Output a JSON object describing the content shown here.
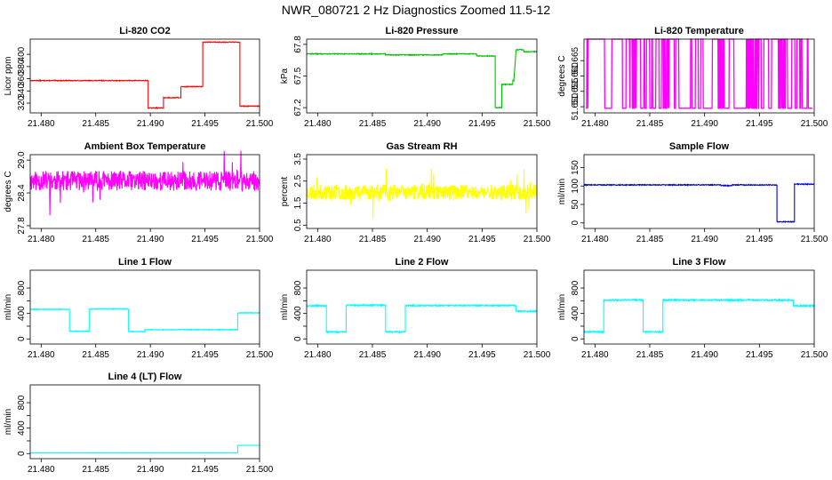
{
  "figure_title": "NWR_080721  2 Hz Diagnostics Zoomed 11.5-12",
  "chart_data": [
    {
      "type": "line",
      "title": "Li-820 CO2",
      "ylabel": "Licor ppm",
      "color": "#ff0000",
      "xlim": [
        21.479,
        21.5
      ],
      "xticks": [
        21.48,
        21.485,
        21.49,
        21.495,
        21.5
      ],
      "xtick_labels": [
        "21.480",
        "21.485",
        "21.490",
        "21.495",
        "21.500"
      ],
      "ylim": [
        304,
        425
      ],
      "yticks": [
        320,
        340,
        360,
        380,
        400
      ],
      "ytick_labels": [
        "320",
        "340",
        "360",
        "380",
        "400"
      ],
      "noise": 0.6,
      "segments": [
        [
          21.479,
          21.4898,
          357
        ],
        [
          21.4898,
          21.4912,
          312
        ],
        [
          21.4912,
          21.4928,
          329
        ],
        [
          21.4928,
          21.4948,
          347
        ],
        [
          21.4948,
          21.4982,
          420
        ],
        [
          21.4982,
          21.5,
          315
        ]
      ]
    },
    {
      "type": "line",
      "title": "Li-820 Pressure",
      "ylabel": "kPa",
      "color": "#00c000",
      "xlim": [
        21.479,
        21.5
      ],
      "xticks": [
        21.48,
        21.485,
        21.49,
        21.495,
        21.5
      ],
      "xtick_labels": [
        "21.480",
        "21.485",
        "21.490",
        "21.495",
        "21.500"
      ],
      "ylim": [
        67.15,
        67.85
      ],
      "yticks": [
        67.2,
        67.5,
        67.8
      ],
      "ytick_labels": [
        "67.2",
        "67.5",
        "67.8"
      ],
      "noise": 0.004,
      "segments": [
        [
          21.479,
          21.4862,
          67.71
        ],
        [
          21.4862,
          21.4914,
          67.7
        ],
        [
          21.4914,
          21.4945,
          67.71
        ],
        [
          21.4945,
          21.4962,
          67.69
        ],
        [
          21.4962,
          21.4968,
          67.2
        ],
        [
          21.4968,
          21.4978,
          67.42
        ],
        [
          21.4978,
          21.4979,
          67.46
        ],
        [
          21.4981,
          21.4988,
          67.75
        ],
        [
          21.4988,
          21.5,
          67.73
        ]
      ]
    },
    {
      "type": "line",
      "title": "Li-820 Temperature",
      "ylabel": "degrees C",
      "color": "#ff00ff",
      "xlim": [
        21.479,
        21.5
      ],
      "xticks": [
        21.48,
        21.485,
        21.49,
        21.495,
        21.5
      ],
      "xtick_labels": [
        "21.480",
        "21.485",
        "21.490",
        "21.495",
        "21.500"
      ],
      "ylim": [
        51.648,
        51.672
      ],
      "yticks": [
        51.65,
        51.655,
        51.66,
        51.665
      ],
      "ytick_labels": [
        "51.650",
        "51.655",
        "51.660",
        "51.665"
      ],
      "binary": [
        51.6495,
        51.672
      ],
      "binary_density": 0.07,
      "binary_dense_zones": [
        [
          21.4834,
          21.4838
        ],
        [
          21.4862,
          21.4868
        ],
        [
          21.4912,
          21.4918
        ],
        [
          21.4938,
          21.4948
        ],
        [
          21.4968,
          21.4974
        ]
      ],
      "seed": 7
    },
    {
      "type": "line",
      "title": "Ambient Box Temperature",
      "ylabel": "degrees C",
      "color": "#ff00ff",
      "xlim": [
        21.479,
        21.5
      ],
      "xticks": [
        21.48,
        21.485,
        21.49,
        21.495,
        21.5
      ],
      "xtick_labels": [
        "21.480",
        "21.485",
        "21.490",
        "21.495",
        "21.500"
      ],
      "ylim": [
        27.75,
        29.1
      ],
      "yticks": [
        27.8,
        28.4,
        29.0
      ],
      "ytick_labels": [
        "27.8",
        "28.4",
        "29.0"
      ],
      "noise": 0.18,
      "spikes": 0.02,
      "segments": [
        [
          21.479,
          21.5,
          28.62
        ]
      ],
      "seed": 11
    },
    {
      "type": "line",
      "title": "Gas Stream RH",
      "ylabel": "percent",
      "color": "#ffff00",
      "xlim": [
        21.479,
        21.5
      ],
      "xticks": [
        21.48,
        21.485,
        21.49,
        21.495,
        21.5
      ],
      "xtick_labels": [
        "21.480",
        "21.485",
        "21.490",
        "21.495",
        "21.500"
      ],
      "ylim": [
        0.35,
        3.7
      ],
      "yticks": [
        0.5,
        1.5,
        2.5,
        3.5
      ],
      "ytick_labels": [
        "0.5",
        "1.5",
        "2.5",
        "3.5"
      ],
      "noise": 0.35,
      "spikes": 0.03,
      "segments": [
        [
          21.479,
          21.5,
          2.0
        ]
      ],
      "seed": 23
    },
    {
      "type": "line",
      "title": "Sample Flow",
      "ylabel": "ml/min",
      "color": "#0000cc",
      "xlim": [
        21.479,
        21.5
      ],
      "xticks": [
        21.48,
        21.485,
        21.49,
        21.495,
        21.5
      ],
      "xtick_labels": [
        "21.480",
        "21.485",
        "21.490",
        "21.495",
        "21.500"
      ],
      "ylim": [
        -15,
        185
      ],
      "yticks": [
        0,
        50,
        100,
        150
      ],
      "ytick_labels": [
        "0",
        "50",
        "100",
        "150"
      ],
      "noise": 1.2,
      "segments": [
        [
          21.479,
          21.4915,
          103
        ],
        [
          21.4915,
          21.4925,
          101
        ],
        [
          21.4925,
          21.4966,
          103
        ],
        [
          21.4966,
          21.4982,
          3
        ],
        [
          21.4982,
          21.5,
          105
        ]
      ]
    },
    {
      "type": "line",
      "title": "Line 1 Flow",
      "ylabel": "ml/min",
      "color": "#00ffff",
      "xlim": [
        21.479,
        21.5
      ],
      "xticks": [
        21.48,
        21.485,
        21.49,
        21.495,
        21.5
      ],
      "xtick_labels": [
        "21.480",
        "21.485",
        "21.490",
        "21.495",
        "21.500"
      ],
      "ylim": [
        -80,
        1080
      ],
      "yticks": [
        0,
        200,
        400,
        600,
        800
      ],
      "ytick_labels": [
        "0",
        "",
        "400",
        "",
        "800"
      ],
      "noise": 6,
      "segments": [
        [
          21.479,
          21.4826,
          465
        ],
        [
          21.4826,
          21.4844,
          120
        ],
        [
          21.4844,
          21.488,
          470
        ],
        [
          21.488,
          21.4895,
          115
        ],
        [
          21.4895,
          21.498,
          145
        ],
        [
          21.498,
          21.5,
          410
        ]
      ]
    },
    {
      "type": "line",
      "title": "Line 2 Flow",
      "ylabel": "ml/min",
      "color": "#00ffff",
      "xlim": [
        21.479,
        21.5
      ],
      "xticks": [
        21.48,
        21.485,
        21.49,
        21.495,
        21.5
      ],
      "xtick_labels": [
        "21.480",
        "21.485",
        "21.490",
        "21.495",
        "21.500"
      ],
      "ylim": [
        -80,
        1080
      ],
      "yticks": [
        0,
        200,
        400,
        600,
        800
      ],
      "ytick_labels": [
        "0",
        "",
        "400",
        "",
        "800"
      ],
      "noise": 10,
      "segments": [
        [
          21.479,
          21.4808,
          520
        ],
        [
          21.4808,
          21.4826,
          110
        ],
        [
          21.4826,
          21.4862,
          530
        ],
        [
          21.4862,
          21.488,
          110
        ],
        [
          21.488,
          21.4981,
          525
        ],
        [
          21.4981,
          21.5,
          435
        ]
      ]
    },
    {
      "type": "line",
      "title": "Line 3 Flow",
      "ylabel": "ml/min",
      "color": "#00ffff",
      "xlim": [
        21.479,
        21.5
      ],
      "xticks": [
        21.48,
        21.485,
        21.49,
        21.495,
        21.5
      ],
      "xtick_labels": [
        "21.480",
        "21.485",
        "21.490",
        "21.495",
        "21.500"
      ],
      "ylim": [
        -80,
        1080
      ],
      "yticks": [
        0,
        200,
        400,
        600,
        800
      ],
      "ytick_labels": [
        "0",
        "",
        "400",
        "",
        "800"
      ],
      "noise": 12,
      "segments": [
        [
          21.479,
          21.4808,
          110
        ],
        [
          21.4808,
          21.4844,
          610
        ],
        [
          21.4844,
          21.4862,
          110
        ],
        [
          21.4862,
          21.4981,
          610
        ],
        [
          21.4981,
          21.5,
          520
        ]
      ]
    },
    {
      "type": "line",
      "title": "Line 4 (LT) Flow",
      "ylabel": "ml/min",
      "color": "#00ffff",
      "xlim": [
        21.479,
        21.5
      ],
      "xticks": [
        21.48,
        21.485,
        21.49,
        21.495,
        21.5
      ],
      "xtick_labels": [
        "21.480",
        "21.485",
        "21.490",
        "21.495",
        "21.500"
      ],
      "ylim": [
        -80,
        1080
      ],
      "yticks": [
        0,
        200,
        400,
        600,
        800
      ],
      "ytick_labels": [
        "0",
        "",
        "400",
        "",
        "800"
      ],
      "noise": 1.5,
      "segments": [
        [
          21.479,
          21.498,
          10
        ],
        [
          21.498,
          21.5,
          130
        ]
      ]
    }
  ]
}
